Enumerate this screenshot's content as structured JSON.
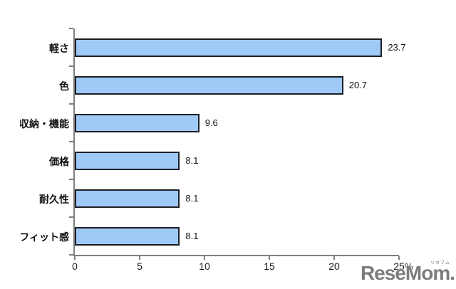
{
  "chart_data": {
    "type": "bar",
    "orientation": "horizontal",
    "title": "",
    "categories": [
      "軽さ",
      "色",
      "収納・機能",
      "価格",
      "耐久性",
      "フィット感"
    ],
    "values": [
      23.7,
      20.7,
      9.6,
      8.1,
      8.1,
      8.1
    ],
    "xlabel": "",
    "ylabel": "",
    "unit": "%",
    "xlim": [
      0,
      25
    ],
    "xticks": [
      0,
      5,
      10,
      15,
      20,
      25
    ],
    "grid": false,
    "legend": null,
    "data_labels": true,
    "bar_color": "#9fcaf7",
    "bar_border_color": "#1c1e26",
    "axis_color": "#7f7f7f",
    "text_color": "#111111"
  },
  "watermark": {
    "text": "ReseMom.",
    "ruby": "リセマム"
  }
}
